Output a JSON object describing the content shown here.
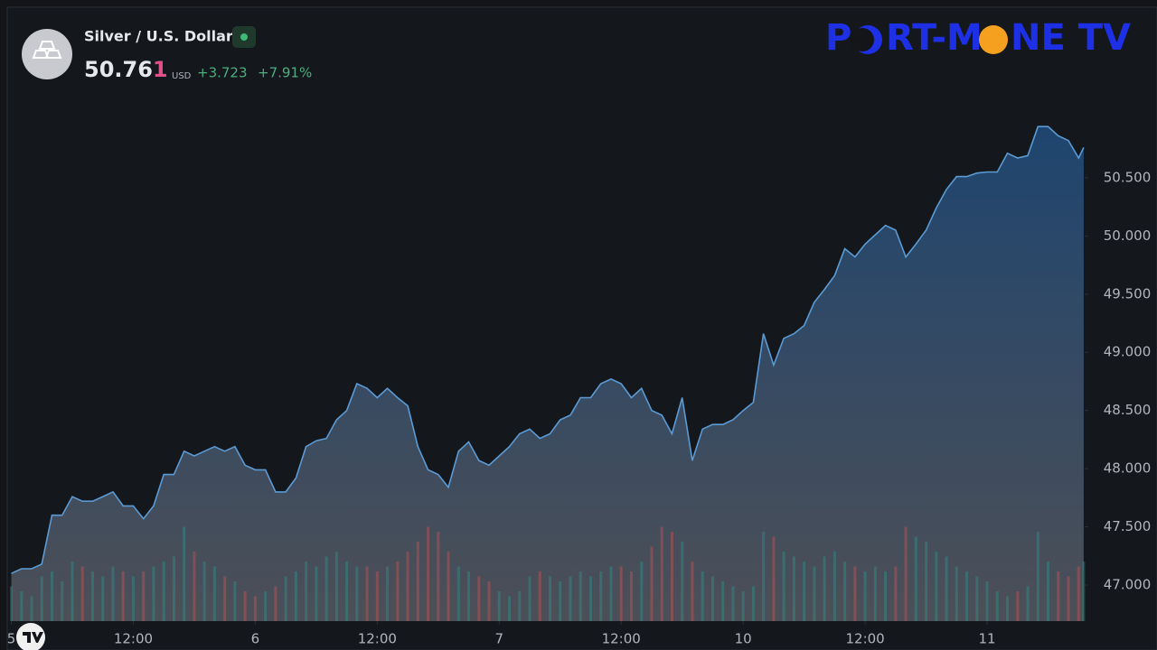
{
  "header": {
    "title": "Silver / U.S. Dollar",
    "price_main": "50.76",
    "price_last": "1",
    "currency": "USD",
    "change": "+3.723",
    "change_pct": "+7.91%"
  },
  "logo": {
    "parts": [
      "P",
      "RT-M",
      "NE TV"
    ]
  },
  "chart_data": {
    "type": "area",
    "x": [
      0,
      1,
      2,
      3,
      4,
      5,
      6,
      7,
      8,
      9,
      10,
      11,
      12,
      13,
      14,
      15,
      16,
      17,
      18,
      19,
      20,
      21,
      22,
      23,
      24,
      25,
      26,
      27,
      28,
      29,
      30,
      31,
      32,
      33,
      34,
      35,
      36,
      37,
      38,
      39,
      40,
      41,
      42,
      43,
      44,
      45,
      46,
      47,
      48,
      49,
      50,
      51,
      52,
      53,
      54,
      55,
      56,
      57,
      58,
      59,
      60,
      61,
      62,
      63,
      64,
      65,
      66,
      67,
      68,
      69,
      70,
      71,
      72,
      73,
      74,
      75,
      76,
      77,
      78,
      79,
      80,
      81,
      82,
      83,
      84,
      85,
      86,
      87,
      88,
      89,
      90,
      91,
      92,
      93,
      94,
      95,
      96,
      97,
      98,
      99,
      100,
      101,
      102,
      103,
      104,
      105,
      105.5
    ],
    "xlim": [
      -0.4,
      105.6
    ],
    "xticks": [
      {
        "value": 0,
        "label": "5"
      },
      {
        "value": 12,
        "label": "12:00"
      },
      {
        "value": 24,
        "label": "6"
      },
      {
        "value": 36,
        "label": "12:00"
      },
      {
        "value": 48,
        "label": "7"
      },
      {
        "value": 60,
        "label": "12:00"
      },
      {
        "value": 72,
        "label": "10"
      },
      {
        "value": 84,
        "label": "12:00"
      },
      {
        "value": 96,
        "label": "11"
      }
    ],
    "ylim": [
      46.69,
      51.95
    ],
    "yticks": [
      {
        "value": 47,
        "label": "47.000"
      },
      {
        "value": 47.5,
        "label": "47.500"
      },
      {
        "value": 48,
        "label": "48.000"
      },
      {
        "value": 48.5,
        "label": "48.500"
      },
      {
        "value": 49,
        "label": "49.000"
      },
      {
        "value": 49.5,
        "label": "49.500"
      },
      {
        "value": 50,
        "label": "50.000"
      },
      {
        "value": 50.5,
        "label": "50.500"
      }
    ],
    "y2lim": [
      0,
      100
    ],
    "series": [
      {
        "color": "#5b9bd5",
        "values": [
          47.1,
          47.14,
          47.14,
          47.18,
          47.6,
          47.6,
          47.76,
          47.72,
          47.72,
          47.76,
          47.8,
          47.68,
          47.68,
          47.57,
          47.68,
          47.95,
          47.95,
          48.15,
          48.11,
          48.15,
          48.19,
          48.15,
          48.19,
          48.03,
          47.99,
          47.99,
          47.8,
          47.8,
          47.92,
          48.19,
          48.24,
          48.26,
          48.42,
          48.5,
          48.73,
          48.69,
          48.61,
          48.69,
          48.61,
          48.54,
          48.19,
          47.99,
          47.95,
          47.84,
          48.15,
          48.23,
          48.07,
          48.03,
          48.11,
          48.19,
          48.3,
          48.34,
          48.26,
          48.3,
          48.42,
          48.46,
          48.61,
          48.61,
          48.73,
          48.77,
          48.73,
          48.61,
          48.69,
          48.5,
          48.46,
          48.3,
          48.61,
          48.07,
          48.34,
          48.38,
          48.38,
          48.42,
          48.5,
          48.57,
          49.16,
          48.89,
          49.12,
          49.16,
          49.23,
          49.43,
          49.54,
          49.66,
          49.89,
          49.82,
          49.93,
          50.01,
          50.09,
          50.05,
          49.82,
          49.93,
          50.05,
          50.24,
          50.4,
          50.51,
          50.51,
          50.54,
          50.55,
          50.55,
          50.71,
          50.67,
          50.69,
          50.94,
          50.94,
          50.86,
          50.82,
          50.67,
          50.76
        ]
      },
      {
        "axis": "y2",
        "up_color": "#26a69a",
        "down_color": "#ef5350",
        "values": [
          35,
          30,
          25,
          45,
          50,
          40,
          60,
          55,
          50,
          45,
          55,
          50,
          45,
          50,
          55,
          60,
          65,
          95,
          70,
          60,
          55,
          45,
          40,
          30,
          25,
          30,
          35,
          45,
          50,
          60,
          55,
          65,
          70,
          60,
          55,
          55,
          50,
          55,
          60,
          70,
          80,
          95,
          90,
          70,
          55,
          50,
          45,
          40,
          30,
          25,
          30,
          45,
          50,
          45,
          40,
          45,
          50,
          45,
          50,
          55,
          55,
          50,
          60,
          75,
          95,
          90,
          80,
          60,
          50,
          45,
          40,
          35,
          30,
          35,
          90,
          85,
          70,
          65,
          60,
          55,
          65,
          70,
          60,
          55,
          50,
          55,
          50,
          55,
          95,
          85,
          80,
          70,
          65,
          55,
          50,
          45,
          40,
          30,
          25,
          30,
          35,
          90,
          60,
          50,
          45,
          55,
          60
        ]
      }
    ]
  }
}
